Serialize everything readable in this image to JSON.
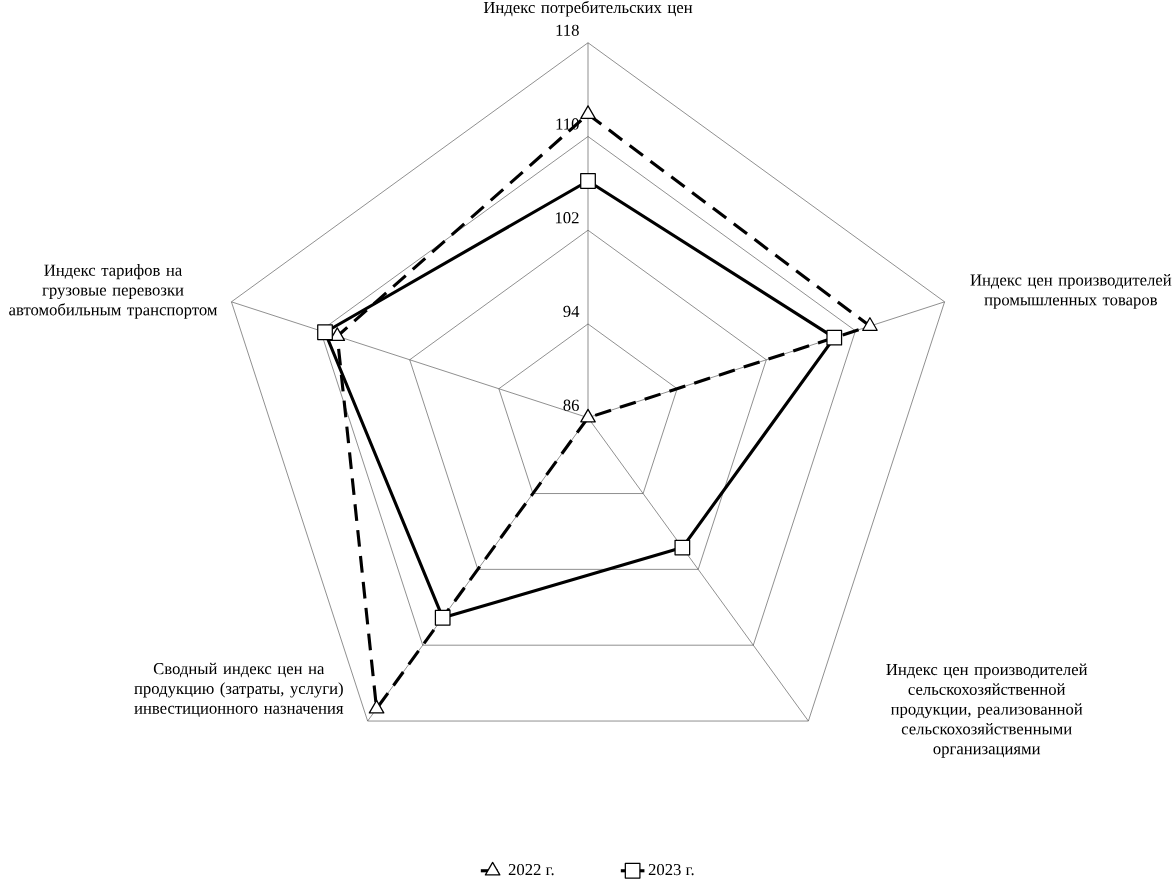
{
  "chart_data": {
    "type": "radar",
    "categories": [
      "Индекс потребительских цен",
      "Индекс цен производителей промышленных товаров",
      "Индекс цен производителей сельскохозяйственной продукции, реализованной сельскохозяйственными организациями",
      "Сводный индекс цен на продукцию (затраты, услуги) инвестиционного назначения",
      "Индекс тарифов на грузовые перевозки автомобильным транспортом"
    ],
    "series": [
      {
        "name": "2022 г.",
        "color": "#000000",
        "marker": "triangle",
        "line_style": "dashed",
        "values": [
          111.9,
          111.3,
          86,
          116.7,
          108.5
        ]
      },
      {
        "name": "2023 г.",
        "color": "#000000",
        "marker": "square",
        "line_style": "solid",
        "values": [
          106.2,
          108.1,
          99.7,
          107.1,
          109.6
        ]
      }
    ],
    "ylim": [
      86,
      118
    ],
    "yticks": [
      86,
      94,
      102,
      110,
      118
    ],
    "grid": true,
    "legend": "bottom"
  }
}
